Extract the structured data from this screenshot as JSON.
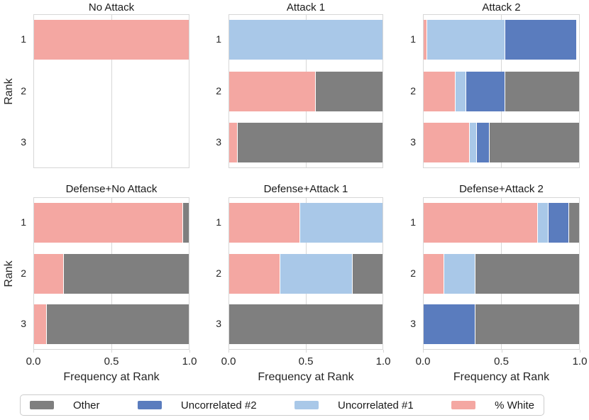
{
  "chart_data": {
    "type": "bar",
    "orientation": "horizontal",
    "stacked": true,
    "grid": true,
    "y_categories": [
      "1",
      "2",
      "3"
    ],
    "ylabel": "Rank",
    "xlabel": "Frequency at Rank",
    "xlim": [
      0,
      1
    ],
    "xticks": [
      "0.0",
      "0.5",
      "1.0"
    ],
    "colors": {
      "white": "#f4a7a2",
      "unc1": "#a9c8e8",
      "unc2": "#5a7cbe",
      "other": "#7f7f7f"
    },
    "legend_position": "bottom",
    "legend": [
      {
        "key": "other",
        "label": "Other"
      },
      {
        "key": "unc2",
        "label": "Uncorrelated #2"
      },
      {
        "key": "unc1",
        "label": "Uncorrelated #1"
      },
      {
        "key": "white",
        "label": "% White"
      }
    ],
    "subplots": [
      {
        "title": "No Attack",
        "bars": [
          [
            [
              "white",
              1.0
            ]
          ],
          [],
          []
        ]
      },
      {
        "title": "Attack 1",
        "bars": [
          [
            [
              "unc1",
              1.0
            ]
          ],
          [
            [
              "white",
              0.56
            ],
            [
              "other",
              0.44
            ]
          ],
          [
            [
              "white",
              0.05
            ],
            [
              "other",
              0.95
            ]
          ]
        ]
      },
      {
        "title": "Attack 2",
        "bars": [
          [
            [
              "white",
              0.02
            ],
            [
              "unc1",
              0.5
            ],
            [
              "unc2",
              0.46
            ]
          ],
          [
            [
              "white",
              0.2
            ],
            [
              "unc1",
              0.07
            ],
            [
              "unc2",
              0.25
            ],
            [
              "other",
              0.48
            ]
          ],
          [
            [
              "white",
              0.29
            ],
            [
              "unc1",
              0.05
            ],
            [
              "unc2",
              0.08
            ],
            [
              "other",
              0.58
            ]
          ]
        ]
      },
      {
        "title": "Defense+No Attack",
        "bars": [
          [
            [
              "white",
              0.96
            ],
            [
              "other",
              0.04
            ]
          ],
          [
            [
              "white",
              0.19
            ],
            [
              "other",
              0.81
            ]
          ],
          [
            [
              "white",
              0.08
            ],
            [
              "other",
              0.92
            ]
          ]
        ]
      },
      {
        "title": "Defense+Attack 1",
        "bars": [
          [
            [
              "white",
              0.46
            ],
            [
              "unc1",
              0.54
            ]
          ],
          [
            [
              "white",
              0.33
            ],
            [
              "unc1",
              0.47
            ],
            [
              "other",
              0.2
            ]
          ],
          [
            [
              "other",
              1.0
            ]
          ]
        ]
      },
      {
        "title": "Defense+Attack 2",
        "bars": [
          [
            [
              "white",
              0.73
            ],
            [
              "unc1",
              0.07
            ],
            [
              "unc2",
              0.13
            ],
            [
              "other",
              0.07
            ]
          ],
          [
            [
              "white",
              0.13
            ],
            [
              "unc1",
              0.2
            ],
            [
              "other",
              0.67
            ]
          ],
          [
            [
              "unc2",
              0.33
            ],
            [
              "other",
              0.67
            ]
          ]
        ]
      }
    ]
  }
}
